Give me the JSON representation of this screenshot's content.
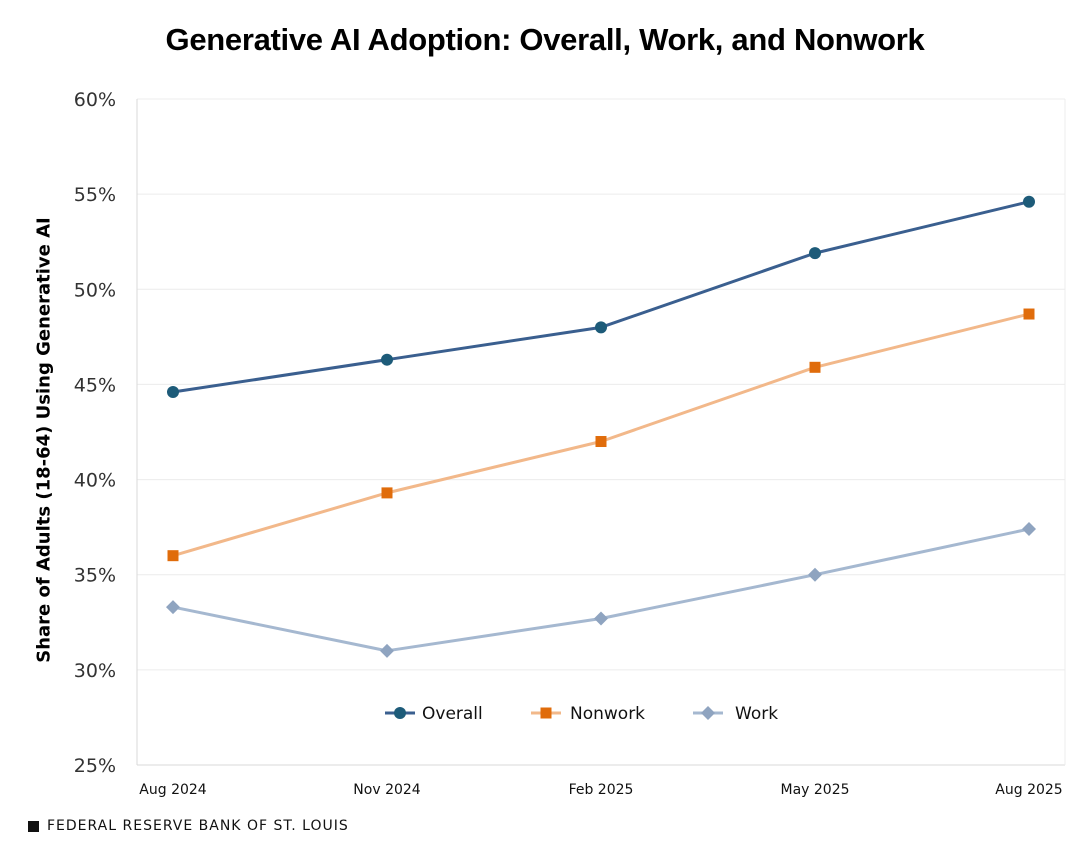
{
  "chart_data": {
    "type": "line",
    "title": "Generative AI Adoption: Overall, Work, and Nonwork",
    "ylabel": "Share of Adults (18-64) Using Generative AI",
    "xlabel": "",
    "categories": [
      "Aug 2024",
      "Nov 2024",
      "Feb 2025",
      "May 2025",
      "Aug 2025"
    ],
    "ylim": [
      25,
      60
    ],
    "yticks": [
      25,
      30,
      35,
      40,
      45,
      50,
      55,
      60
    ],
    "ytick_labels": [
      "25%",
      "30%",
      "35%",
      "40%",
      "45%",
      "50%",
      "55%",
      "60%"
    ],
    "grid": "horizontal",
    "legend_position": "bottom-center inside",
    "series": [
      {
        "name": "Overall",
        "values": [
          44.6,
          46.3,
          48.0,
          51.9,
          54.6
        ],
        "color": "#3a5f8f",
        "marker": "circle",
        "marker_color": "#1d5b79"
      },
      {
        "name": "Nonwork",
        "values": [
          36.0,
          39.3,
          42.0,
          45.9,
          48.7
        ],
        "color": "#f2b88a",
        "marker": "square",
        "marker_color": "#e06c0b"
      },
      {
        "name": "Work",
        "values": [
          33.3,
          31.0,
          32.7,
          35.0,
          37.4
        ],
        "color": "#a5b8d0",
        "marker": "diamond",
        "marker_color": "#8fa4c0"
      }
    ]
  },
  "footer": {
    "source": "FEDERAL RESERVE BANK OF ST. LOUIS"
  }
}
